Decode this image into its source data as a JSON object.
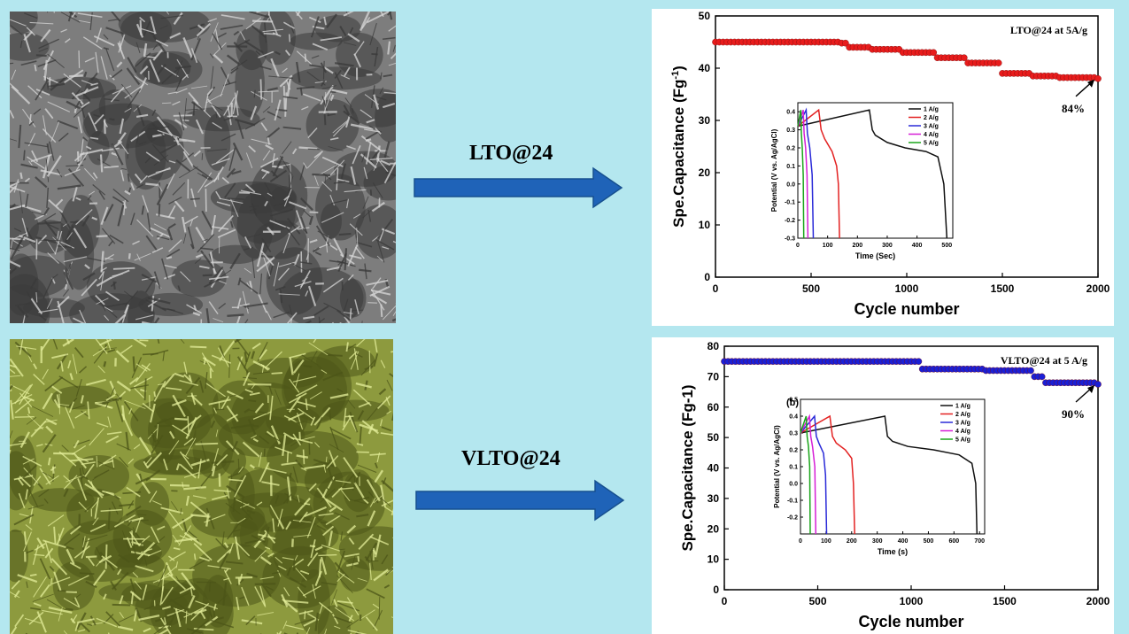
{
  "arrows": [
    {
      "label": "LTO@24"
    },
    {
      "label": "VLTO@24"
    }
  ],
  "colors": {
    "background": "#b4e7ef",
    "arrow": "#1f63b8",
    "lto_series": "#e81c1c",
    "vlto_series": "#1a1fd6",
    "sem_gray": "#8a8a8a",
    "sem_green": "#c9d67a"
  },
  "chart_data": [
    {
      "type": "scatter",
      "title": "LTO@24 at 5A/g",
      "xlabel": "Cycle number",
      "ylabel": "Spe.Capacitance (Fg",
      "ylabel_sup": "-1",
      "ylabel_end": ")",
      "xlim": [
        0,
        2000
      ],
      "ylim": [
        0,
        50
      ],
      "xticks": [
        0,
        500,
        1000,
        1500,
        2000
      ],
      "yticks": [
        0,
        10,
        20,
        30,
        40,
        50
      ],
      "color": "#e81c1c",
      "steps": [
        [
          0,
          45
        ],
        [
          650,
          44.8
        ],
        [
          700,
          44
        ],
        [
          820,
          43.6
        ],
        [
          980,
          43
        ],
        [
          1150,
          42
        ],
        [
          1320,
          41
        ],
        [
          1500,
          39
        ],
        [
          1650,
          38.5
        ],
        [
          1800,
          38.2
        ],
        [
          2000,
          38
        ]
      ],
      "annotation": "84%",
      "inset": {
        "type": "line",
        "xlabel": "Time (Sec)",
        "ylabel": "Potential (V vs. Ag/AgCl)",
        "xlim": [
          0,
          520
        ],
        "ylim": [
          -0.3,
          0.45
        ],
        "xticks": [
          0,
          100,
          200,
          300,
          400,
          500
        ],
        "yticks": [
          -0.3,
          -0.2,
          -0.1,
          0.0,
          0.1,
          0.2,
          0.3,
          0.4
        ],
        "series": [
          {
            "name": "1 A/g",
            "color": "#111111",
            "x": [
              0,
              240,
              250,
              260,
              300,
              360,
              430,
              470,
              490,
              500
            ],
            "y": [
              0.32,
              0.41,
              0.3,
              0.27,
              0.23,
              0.2,
              0.18,
              0.15,
              0.0,
              -0.3
            ]
          },
          {
            "name": "2 A/g",
            "color": "#e32222",
            "x": [
              0,
              70,
              78,
              90,
              115,
              130,
              136,
              140
            ],
            "y": [
              0.32,
              0.41,
              0.3,
              0.25,
              0.18,
              0.1,
              0.0,
              -0.3
            ]
          },
          {
            "name": "3 A/g",
            "color": "#2a2ad8",
            "x": [
              0,
              28,
              32,
              40,
              48,
              52
            ],
            "y": [
              0.32,
              0.41,
              0.28,
              0.2,
              0.05,
              -0.3
            ]
          },
          {
            "name": "4 A/g",
            "color": "#d61fd6",
            "x": [
              0,
              18,
              21,
              26,
              31,
              34
            ],
            "y": [
              0.32,
              0.41,
              0.28,
              0.2,
              0.05,
              -0.3
            ]
          },
          {
            "name": "5 A/g",
            "color": "#1aa51a",
            "x": [
              0,
              10,
              12,
              15,
              18,
              20
            ],
            "y": [
              0.32,
              0.41,
              0.28,
              0.2,
              0.05,
              -0.3
            ]
          }
        ]
      }
    },
    {
      "type": "scatter",
      "title": "VLTO@24 at 5 A/g",
      "xlabel": "Cycle number",
      "ylabel": "Spe.Capacitance (Fg-1)",
      "ylabel_sup": "",
      "ylabel_end": "",
      "xlim": [
        0,
        2000
      ],
      "ylim": [
        0,
        80
      ],
      "xticks": [
        0,
        500,
        1000,
        1500,
        2000
      ],
      "yticks": [
        0,
        10,
        20,
        30,
        40,
        50,
        60,
        70,
        80
      ],
      "color": "#1a1fd6",
      "steps": [
        [
          0,
          75
        ],
        [
          1000,
          75
        ],
        [
          1050,
          72.5
        ],
        [
          1400,
          72
        ],
        [
          1650,
          70
        ],
        [
          1720,
          68
        ],
        [
          2000,
          67.5
        ]
      ],
      "annotation": "90%",
      "inset": {
        "type": "line",
        "panel_label": "(b)",
        "xlabel": "Time (s)",
        "ylabel": "Potential (V vs. Ag/AgCl)",
        "xlim": [
          0,
          720
        ],
        "ylim": [
          -0.3,
          0.5
        ],
        "xticks": [
          0,
          100,
          200,
          300,
          400,
          500,
          600,
          700
        ],
        "yticks": [
          -0.2,
          -0.1,
          0.0,
          0.1,
          0.2,
          0.3,
          0.4,
          0.5
        ],
        "series": [
          {
            "name": "1 A/g",
            "color": "#111111",
            "x": [
              0,
              330,
              340,
              360,
              420,
              520,
              620,
              670,
              685,
              690
            ],
            "y": [
              0.3,
              0.4,
              0.28,
              0.25,
              0.22,
              0.2,
              0.17,
              0.12,
              0.0,
              -0.3
            ]
          },
          {
            "name": "2 A/g",
            "color": "#e32222",
            "x": [
              0,
              115,
              125,
              140,
              175,
              200,
              207,
              212
            ],
            "y": [
              0.3,
              0.4,
              0.28,
              0.24,
              0.2,
              0.15,
              0.0,
              -0.3
            ]
          },
          {
            "name": "3 A/g",
            "color": "#2a2ad8",
            "x": [
              0,
              55,
              62,
              72,
              90,
              98,
              102
            ],
            "y": [
              0.3,
              0.4,
              0.28,
              0.24,
              0.18,
              0.05,
              -0.3
            ]
          },
          {
            "name": "4 A/g",
            "color": "#d61fd6",
            "x": [
              0,
              35,
              40,
              47,
              56,
              60
            ],
            "y": [
              0.3,
              0.4,
              0.28,
              0.22,
              0.1,
              -0.3
            ]
          },
          {
            "name": "5 A/g",
            "color": "#1aa51a",
            "x": [
              0,
              22,
              26,
              31,
              36,
              38
            ],
            "y": [
              0.3,
              0.4,
              0.28,
              0.22,
              0.1,
              -0.3
            ]
          }
        ]
      }
    }
  ]
}
